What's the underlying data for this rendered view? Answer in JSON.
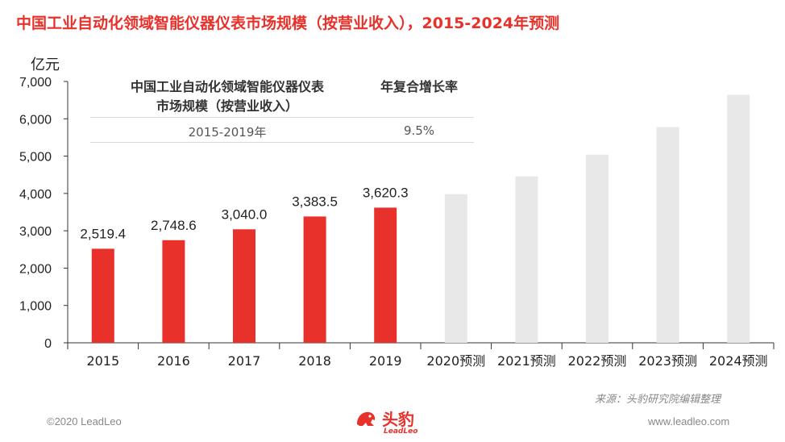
{
  "title": "中国工业自动化领域智能仪器仪表市场规模（按营业收入），2015-2024年预测",
  "unit_label": "亿元",
  "table": {
    "col1_header_line1": "中国工业自动化领域智能仪器仪表",
    "col1_header_line2": "市场规模（按营业收入）",
    "col2_header": "年复合增长率",
    "period": "2015-2019年",
    "cagr": "9.5%"
  },
  "source": "来源：头豹研究院编辑整理",
  "footer": {
    "copyright": "©2020 LeadLeo",
    "website": "www.leadleo.com"
  },
  "logo": {
    "text": "头豹",
    "sub": "LeadLeo",
    "icon": "leopard-logo-icon"
  },
  "colors": {
    "actual": "#e8312a",
    "forecast": "#e8e8e8",
    "title": "#e8312a"
  },
  "chart_data": {
    "type": "bar",
    "categories": [
      "2015",
      "2016",
      "2017",
      "2018",
      "2019",
      "2020预测",
      "2021预测",
      "2022预测",
      "2023预测",
      "2024预测"
    ],
    "values": [
      2519.4,
      2748.6,
      3040.0,
      3383.5,
      3620.3,
      3980,
      4460,
      5040,
      5780,
      6640
    ],
    "labels": [
      "2,519.4",
      "2,748.6",
      "3,040.0",
      "3,383.5",
      "3,620.3",
      "",
      "",
      "",
      "",
      ""
    ],
    "is_forecast": [
      false,
      false,
      false,
      false,
      false,
      true,
      true,
      true,
      true,
      true
    ],
    "ylim": [
      0,
      7000
    ],
    "yticks": [
      0,
      1000,
      2000,
      3000,
      4000,
      5000,
      6000,
      7000
    ],
    "ytick_labels": [
      "0",
      "1,000",
      "2,000",
      "3,000",
      "4,000",
      "5,000",
      "6,000",
      "7,000"
    ],
    "ylabel": "亿元",
    "grid": false,
    "legend": "none"
  }
}
